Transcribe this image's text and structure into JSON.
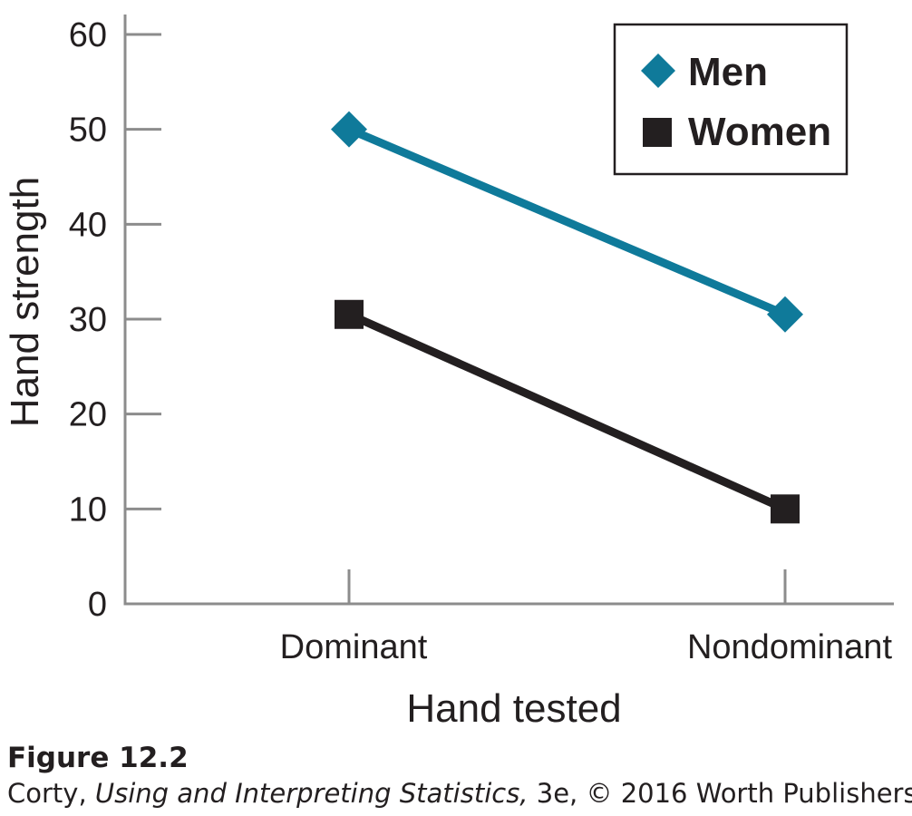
{
  "chart_data": {
    "type": "line",
    "categories": [
      "Dominant",
      "Nondominant"
    ],
    "series": [
      {
        "name": "Men",
        "values": [
          50,
          30.5
        ],
        "color": "#0f7a9a",
        "marker": "diamond"
      },
      {
        "name": "Women",
        "values": [
          30.5,
          10
        ],
        "color": "#231f20",
        "marker": "square"
      }
    ],
    "xlabel": "Hand tested",
    "ylabel": "Hand strength",
    "ylim": [
      0,
      60
    ],
    "yticks": [
      0,
      10,
      20,
      30,
      40,
      50,
      60
    ],
    "grid": false,
    "legend_position": "top-right"
  },
  "caption": {
    "figure_label": "Figure 12.2",
    "source_prefix": "Corty, ",
    "source_title": "Using and Interpreting Statistics,",
    "source_suffix": " 3e, © 2016 Worth Publishers"
  },
  "colors": {
    "axis": "#8c8c8c",
    "text": "#231f20",
    "men": "#0f7a9a",
    "women": "#231f20"
  }
}
